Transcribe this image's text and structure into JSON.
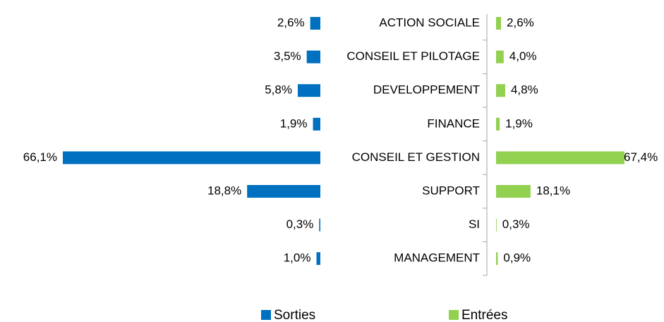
{
  "chart_data": {
    "type": "butterfly-bar",
    "categories": [
      "ACTION SOCIALE",
      "CONSEIL ET PILOTAGE",
      "DEVELOPPEMENT",
      "FINANCE",
      "CONSEIL ET GESTION",
      "SUPPORT",
      "SI",
      "MANAGEMENT"
    ],
    "series": [
      {
        "name": "Sorties",
        "color": "#0070c0",
        "values": [
          2.6,
          3.5,
          5.8,
          1.9,
          66.1,
          18.8,
          0.3,
          1.0
        ],
        "value_labels": [
          "2,6%",
          "3,5%",
          "5,8%",
          "1,9%",
          "66,1%",
          "18,8%",
          "0,3%",
          "1,0%"
        ]
      },
      {
        "name": "Entrées",
        "color": "#92d050",
        "values": [
          2.6,
          4.0,
          4.8,
          1.9,
          67.4,
          18.1,
          0.3,
          0.9
        ],
        "value_labels": [
          "2,6%",
          "4,0%",
          "4,8%",
          "1,9%",
          "67,4%",
          "18,1%",
          "0,3%",
          "0,9%"
        ]
      }
    ],
    "legend": "bottom"
  }
}
